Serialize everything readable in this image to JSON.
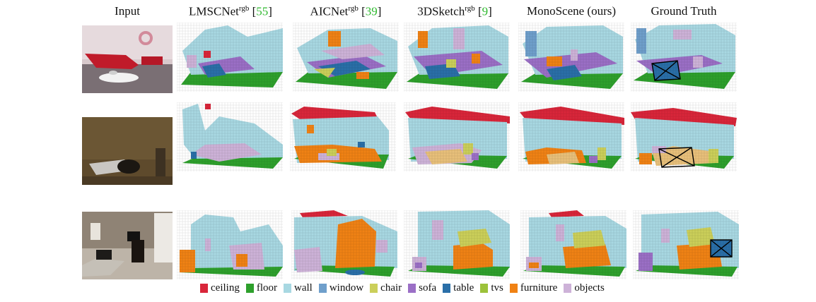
{
  "columns": [
    {
      "name": "Input",
      "sup": "",
      "cite": ""
    },
    {
      "name": "LMSCNet",
      "sup": "rgb",
      "cite": "55"
    },
    {
      "name": "AICNet",
      "sup": "rgb",
      "cite": "39"
    },
    {
      "name": "3DSketch",
      "sup": "rgb",
      "cite": "9"
    },
    {
      "name": "MonoScene (ours)",
      "sup": "",
      "cite": ""
    },
    {
      "name": "Ground Truth",
      "sup": "",
      "cite": ""
    }
  ],
  "legend": [
    {
      "label": "ceiling",
      "color": "#d9263a"
    },
    {
      "label": "floor",
      "color": "#2ea02c"
    },
    {
      "label": "wall",
      "color": "#a8d8e2"
    },
    {
      "label": "window",
      "color": "#6f9fcb"
    },
    {
      "label": "chair",
      "color": "#cbcf5a"
    },
    {
      "label": "sofa",
      "color": "#9b6fc6"
    },
    {
      "label": "table",
      "color": "#2a6fa8"
    },
    {
      "label": "tvs",
      "color": "#9cc23a"
    },
    {
      "label": "furniture",
      "color": "#f08214"
    },
    {
      "label": "objects",
      "color": "#cdb2d8"
    }
  ]
}
